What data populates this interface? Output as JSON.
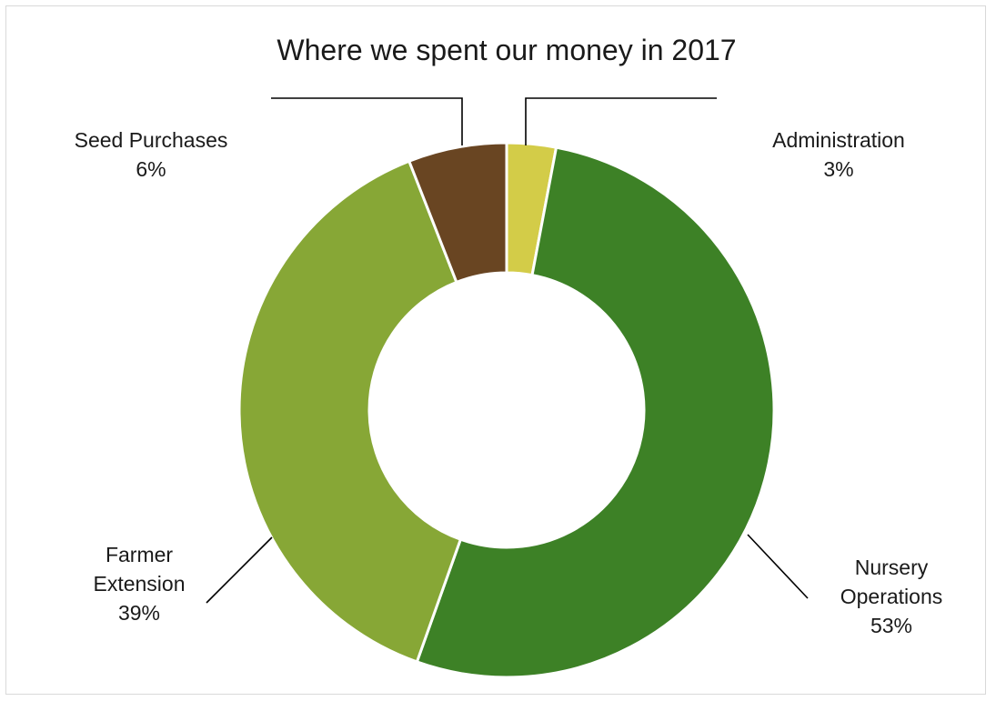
{
  "chart_data": {
    "type": "pie",
    "variant": "doughnut",
    "title": "Where we spent our money in 2017",
    "categories": [
      "Administration",
      "Nursery Operations",
      "Farmer Extension",
      "Seed Purchases"
    ],
    "values": [
      3,
      53,
      39,
      6
    ],
    "value_labels": [
      "3%",
      "53%",
      "39%",
      "6%"
    ],
    "label_lines": [
      [
        "Administration",
        "3%"
      ],
      [
        "Nursery",
        "Operations",
        "53%"
      ],
      [
        "Farmer",
        "Extension",
        "39%"
      ],
      [
        "Seed Purchases",
        "6%"
      ]
    ],
    "colors": [
      "#d3cc48",
      "#3d8126",
      "#87a736",
      "#694522"
    ],
    "legend": "none",
    "data_labels": "outside with leader lines"
  }
}
